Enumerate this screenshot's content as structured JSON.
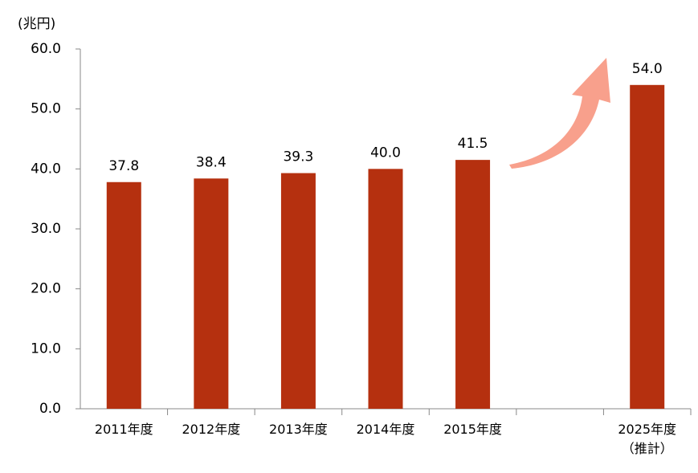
{
  "chart_data": {
    "type": "bar",
    "y_axis_label": "(兆円)",
    "categories": [
      "2011年度",
      "2012年度",
      "2013年度",
      "2014年度",
      "2015年度",
      null,
      "2025年度\n（推計）"
    ],
    "values": [
      37.8,
      38.4,
      39.3,
      40.0,
      41.5,
      null,
      54.0
    ],
    "value_labels": [
      "37.8",
      "38.4",
      "39.3",
      "40.0",
      "41.5",
      null,
      "54.0"
    ],
    "color": "#b5300f",
    "ylim": [
      0,
      60
    ],
    "yticks": [
      {
        "value": 0,
        "label": "0.0"
      },
      {
        "value": 10,
        "label": "10.0"
      },
      {
        "value": 20,
        "label": "20.0"
      },
      {
        "value": 30,
        "label": "30.0"
      },
      {
        "value": 40,
        "label": "40.0"
      },
      {
        "value": 50,
        "label": "50.0"
      },
      {
        "value": 60,
        "label": "60.0"
      }
    ],
    "grid": false
  }
}
